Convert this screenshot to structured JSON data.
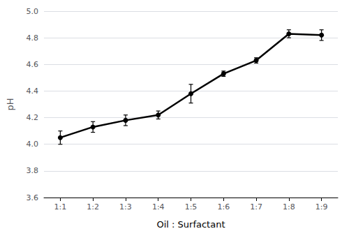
{
  "chart_data": {
    "type": "line",
    "xlabel": "Oil : Surfactant",
    "ylabel": "pH",
    "categories": [
      "1:1",
      "1:2",
      "1:3",
      "1:4",
      "1:5",
      "1:6",
      "1:7",
      "1:8",
      "1:9"
    ],
    "values": [
      4.05,
      4.13,
      4.18,
      4.22,
      4.38,
      4.53,
      4.63,
      4.83,
      4.82
    ],
    "errors": [
      0.05,
      0.04,
      0.04,
      0.03,
      0.07,
      0.02,
      0.02,
      0.03,
      0.04
    ],
    "color": "black",
    "marker": "circle",
    "ylim": [
      3.6,
      5.0
    ],
    "yticks": [
      3.6,
      3.8,
      {
        "value": 4.0,
        "label": "4.0"
      },
      4.2,
      4.4,
      4.6,
      4.8,
      {
        "value": 5.0,
        "label": "5.0"
      }
    ],
    "grid": true
  }
}
